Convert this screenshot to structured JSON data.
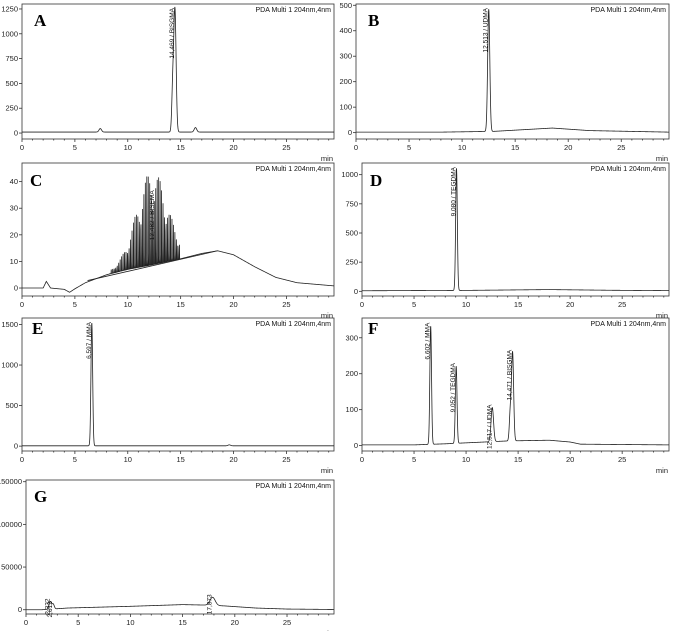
{
  "chart_data": [
    {
      "panel": "A",
      "type": "line",
      "header": "PDA Multi 1 204nm,4nm",
      "xlabel": "min",
      "xlim": [
        0,
        29.5
      ],
      "ylim": [
        -60,
        1300
      ],
      "xticks": [
        0,
        5,
        10,
        15,
        20,
        25
      ],
      "yticks": [
        0,
        250,
        500,
        750,
        1000,
        1250
      ],
      "baseline": [
        [
          0,
          10
        ],
        [
          29.5,
          10
        ]
      ],
      "peaks": [
        {
          "t": 7.4,
          "h": 35,
          "w": 0.12
        },
        {
          "t": 14.25,
          "h": 420,
          "w": 0.09
        },
        {
          "t": 14.46,
          "h": 1230,
          "w": 0.11
        },
        {
          "t": 16.4,
          "h": 45,
          "w": 0.12
        }
      ],
      "labels": [
        {
          "t": 14.46,
          "text": "14,469 / BISGMA"
        }
      ]
    },
    {
      "panel": "B",
      "type": "line",
      "header": "PDA Multi 1 204nm,4nm",
      "xlabel": "min",
      "xlim": [
        0,
        29.5
      ],
      "ylim": [
        -25,
        505
      ],
      "xticks": [
        0,
        5,
        10,
        15,
        20,
        25
      ],
      "yticks": [
        0,
        100,
        200,
        300,
        400,
        500
      ],
      "baseline": [
        [
          0,
          2
        ],
        [
          8,
          2
        ],
        [
          13,
          5
        ],
        [
          18.5,
          18
        ],
        [
          22,
          8
        ],
        [
          29.5,
          2
        ]
      ],
      "peaks": [
        {
          "t": 12.51,
          "h": 480,
          "w": 0.1
        }
      ],
      "labels": [
        {
          "t": 12.51,
          "text": "12,513 / UDMA"
        }
      ]
    },
    {
      "panel": "C",
      "type": "line",
      "header": "PDA Multi 1 204nm,4nm",
      "xlabel": "min",
      "xlim": [
        0,
        29.5
      ],
      "ylim": [
        -3,
        47
      ],
      "xticks": [
        0,
        5,
        10,
        15,
        20,
        25
      ],
      "yticks": [
        0,
        10,
        20,
        30,
        40
      ],
      "baseline": [
        [
          0,
          0
        ],
        [
          2,
          0
        ],
        [
          2.3,
          2.5
        ],
        [
          2.7,
          0
        ],
        [
          4,
          -0.5
        ],
        [
          4.5,
          -1.6
        ],
        [
          5,
          -0.3
        ],
        [
          6,
          2
        ],
        [
          8,
          5
        ],
        [
          10,
          7
        ],
        [
          12,
          8.5
        ],
        [
          15,
          11
        ],
        [
          17,
          13
        ],
        [
          18.5,
          14
        ],
        [
          20,
          12.5
        ],
        [
          22,
          8
        ],
        [
          24,
          4
        ],
        [
          26,
          2
        ],
        [
          29.5,
          0.8
        ]
      ],
      "combs": [
        {
          "from": 8.3,
          "to": 15.0,
          "period": 0.14,
          "center": 12.3,
          "sigma": 1.45,
          "amp": 35,
          "minAmp": 0.6
        }
      ],
      "lines": [
        [
          [
            6.2,
            2.8
          ],
          [
            18.5,
            14
          ]
        ]
      ],
      "labels": [
        {
          "t": 12.6,
          "text": "12,482 / BISEMA"
        }
      ]
    },
    {
      "panel": "D",
      "type": "line",
      "header": "PDA Multi 1 204nm,4nm",
      "xlabel": "min",
      "xlim": [
        0,
        29.5
      ],
      "ylim": [
        -40,
        1100
      ],
      "xticks": [
        0,
        5,
        10,
        15,
        20,
        25
      ],
      "yticks": [
        0,
        250,
        500,
        750,
        1000
      ],
      "baseline": [
        [
          0,
          5
        ],
        [
          10,
          8
        ],
        [
          18,
          15
        ],
        [
          24,
          9
        ],
        [
          29.5,
          6
        ]
      ],
      "peaks": [
        {
          "t": 9.08,
          "h": 1050,
          "w": 0.08
        }
      ],
      "labels": [
        {
          "t": 9.08,
          "text": "9,080 / TEGDMA"
        }
      ]
    },
    {
      "panel": "E",
      "type": "line",
      "header": "PDA Multi 1 204nm,4nm",
      "xlabel": "min",
      "xlim": [
        0,
        29.5
      ],
      "ylim": [
        -60,
        1580
      ],
      "xticks": [
        0,
        5,
        10,
        15,
        20,
        25
      ],
      "yticks": [
        0,
        500,
        1000,
        1500
      ],
      "baseline": [
        [
          0,
          4
        ],
        [
          29.5,
          4
        ]
      ],
      "peaks": [
        {
          "t": 6.6,
          "h": 1520,
          "w": 0.08
        },
        {
          "t": 19.6,
          "h": 12,
          "w": 0.12
        }
      ],
      "labels": [
        {
          "t": 6.6,
          "text": "6,597 / MMA"
        }
      ]
    },
    {
      "panel": "F",
      "type": "line",
      "header": "PDA Multi 1 204nm,4nm",
      "xlabel": "min",
      "xlim": [
        0,
        29.5
      ],
      "ylim": [
        -15,
        355
      ],
      "xticks": [
        0,
        5,
        10,
        15,
        20,
        25
      ],
      "yticks": [
        0,
        100,
        200,
        300
      ],
      "baseline": [
        [
          0,
          2
        ],
        [
          5,
          2
        ],
        [
          8,
          5
        ],
        [
          11,
          9
        ],
        [
          14,
          13
        ],
        [
          18,
          15
        ],
        [
          20,
          10
        ],
        [
          21,
          4
        ],
        [
          29.5,
          2
        ]
      ],
      "peaks": [
        {
          "t": 6.6,
          "h": 330,
          "w": 0.08
        },
        {
          "t": 9.05,
          "h": 215,
          "w": 0.08
        },
        {
          "t": 12.52,
          "h": 95,
          "w": 0.12
        },
        {
          "t": 14.25,
          "h": 80,
          "w": 0.09
        },
        {
          "t": 14.47,
          "h": 245,
          "w": 0.1
        }
      ],
      "labels": [
        {
          "t": 6.6,
          "text": "6,602 / MMA"
        },
        {
          "t": 9.05,
          "text": "9,052 / TEGDMA"
        },
        {
          "t": 12.52,
          "text": "12,517 / UDMA"
        },
        {
          "t": 14.47,
          "text": "14,471 / BISGMA"
        }
      ]
    },
    {
      "panel": "G",
      "type": "line",
      "header": "PDA Multi 1 204nm,4nm",
      "xlabel": "min",
      "xlim": [
        0,
        29.5
      ],
      "ylim": [
        -5000,
        152000
      ],
      "xticks": [
        0,
        5,
        10,
        15,
        20,
        25
      ],
      "yticks": [
        0,
        50000,
        100000,
        150000
      ],
      "baseline": [
        [
          0,
          0
        ],
        [
          1.5,
          0
        ],
        [
          4,
          2000
        ],
        [
          10,
          4000
        ],
        [
          15,
          6000
        ],
        [
          17,
          5500
        ],
        [
          19,
          4500
        ],
        [
          22,
          2000
        ],
        [
          25,
          800
        ],
        [
          29.5,
          300
        ]
      ],
      "peaks": [
        {
          "t": 2.33,
          "h": 9000,
          "w": 0.12
        },
        {
          "t": 2.61,
          "h": 5500,
          "w": 0.1
        },
        {
          "t": 17.87,
          "h": 9500,
          "w": 0.25
        }
      ],
      "labels": [
        {
          "t": 2.33,
          "text": "2,332"
        },
        {
          "t": 2.61,
          "text": "2,612"
        },
        {
          "t": 17.87,
          "text": "17,873"
        }
      ]
    }
  ]
}
